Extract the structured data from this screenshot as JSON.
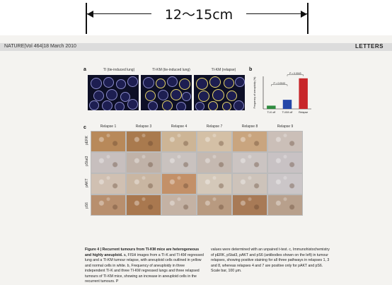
{
  "ruler": {
    "label": "12～15cm"
  },
  "page_header": {
    "journal_ref": "NATURE|Vol 464|18 March 2010",
    "section": "LETTERS"
  },
  "panel_a": {
    "letter": "a",
    "labels": [
      "TI (tie-induced lung)",
      "TI-KM (tie-induced lung)",
      "TI-KM (relapse)"
    ]
  },
  "panel_b": {
    "letter": "b"
  },
  "panel_c": {
    "letter": "c",
    "column_headers": [
      "Relapse 1",
      "Relapse 3",
      "Relapse 4",
      "Relapse 7",
      "Relapse 8",
      "Relapse 9"
    ],
    "row_labels": [
      "pERK",
      "pStat3",
      "pAKT",
      "pS6"
    ],
    "cell_tones": [
      [
        "#b8895a",
        "#a97a4e",
        "#cdb596",
        "#d4c0a6",
        "#c9a57f",
        "#cbbfb8"
      ],
      [
        "#c7bfbe",
        "#c0b2a8",
        "#c9c2bf",
        "#c5b9b1",
        "#cbc4c2",
        "#c8c2c4"
      ],
      [
        "#d0c0b2",
        "#c9b6a2",
        "#c39068",
        "#d4c8b9",
        "#cdc3ba",
        "#cbc6c8"
      ],
      [
        "#b88f6e",
        "#a9784f",
        "#c4b2a4",
        "#b89a80",
        "#a87a56",
        "#b8a08c"
      ]
    ]
  },
  "chart_data": {
    "type": "bar",
    "title": "",
    "xlabel": "",
    "ylabel": "Frequency of aneuploidy (%)",
    "categories": [
      "TI-K off",
      "TI-KM off",
      "Relapse"
    ],
    "values": [
      5,
      14,
      47
    ],
    "ylim": [
      0,
      50
    ],
    "annotations": [
      "P = 0.0043",
      "P = 0.0043"
    ],
    "colors": [
      "#2e8b3f",
      "#2346a8",
      "#c8262a"
    ]
  },
  "caption": {
    "left_heading": "Figure 4 | Recurrent tumours from TI-KM mice are heterogeneous and highly aneuploid.",
    "left_body": "a, FISH images from a TI-K and TI-KM regressed lung and a TI-KM tumour relapse, with aneuploid cells outlined in yellow and normal cells in white. b, Frequency of aneuploidy in three independent TI-K and three TI-KM regressed lungs and three relapsed tumours of TI-KM mice, showing an increase in aneuploid cells in the recurrent tumours. P",
    "right_body": "values were determined with an unpaired t-test. c, Immunohistochemistry of pERK, pStat3, pAKT and pS6 (antibodies shown on the left) in tumour relapses, showing positive staining for all three pathways in relapses 1, 3 and 8, whereas relapses 4 and 7 are positive only for pAKT and pS6. Scale bar, 100 μm."
  }
}
